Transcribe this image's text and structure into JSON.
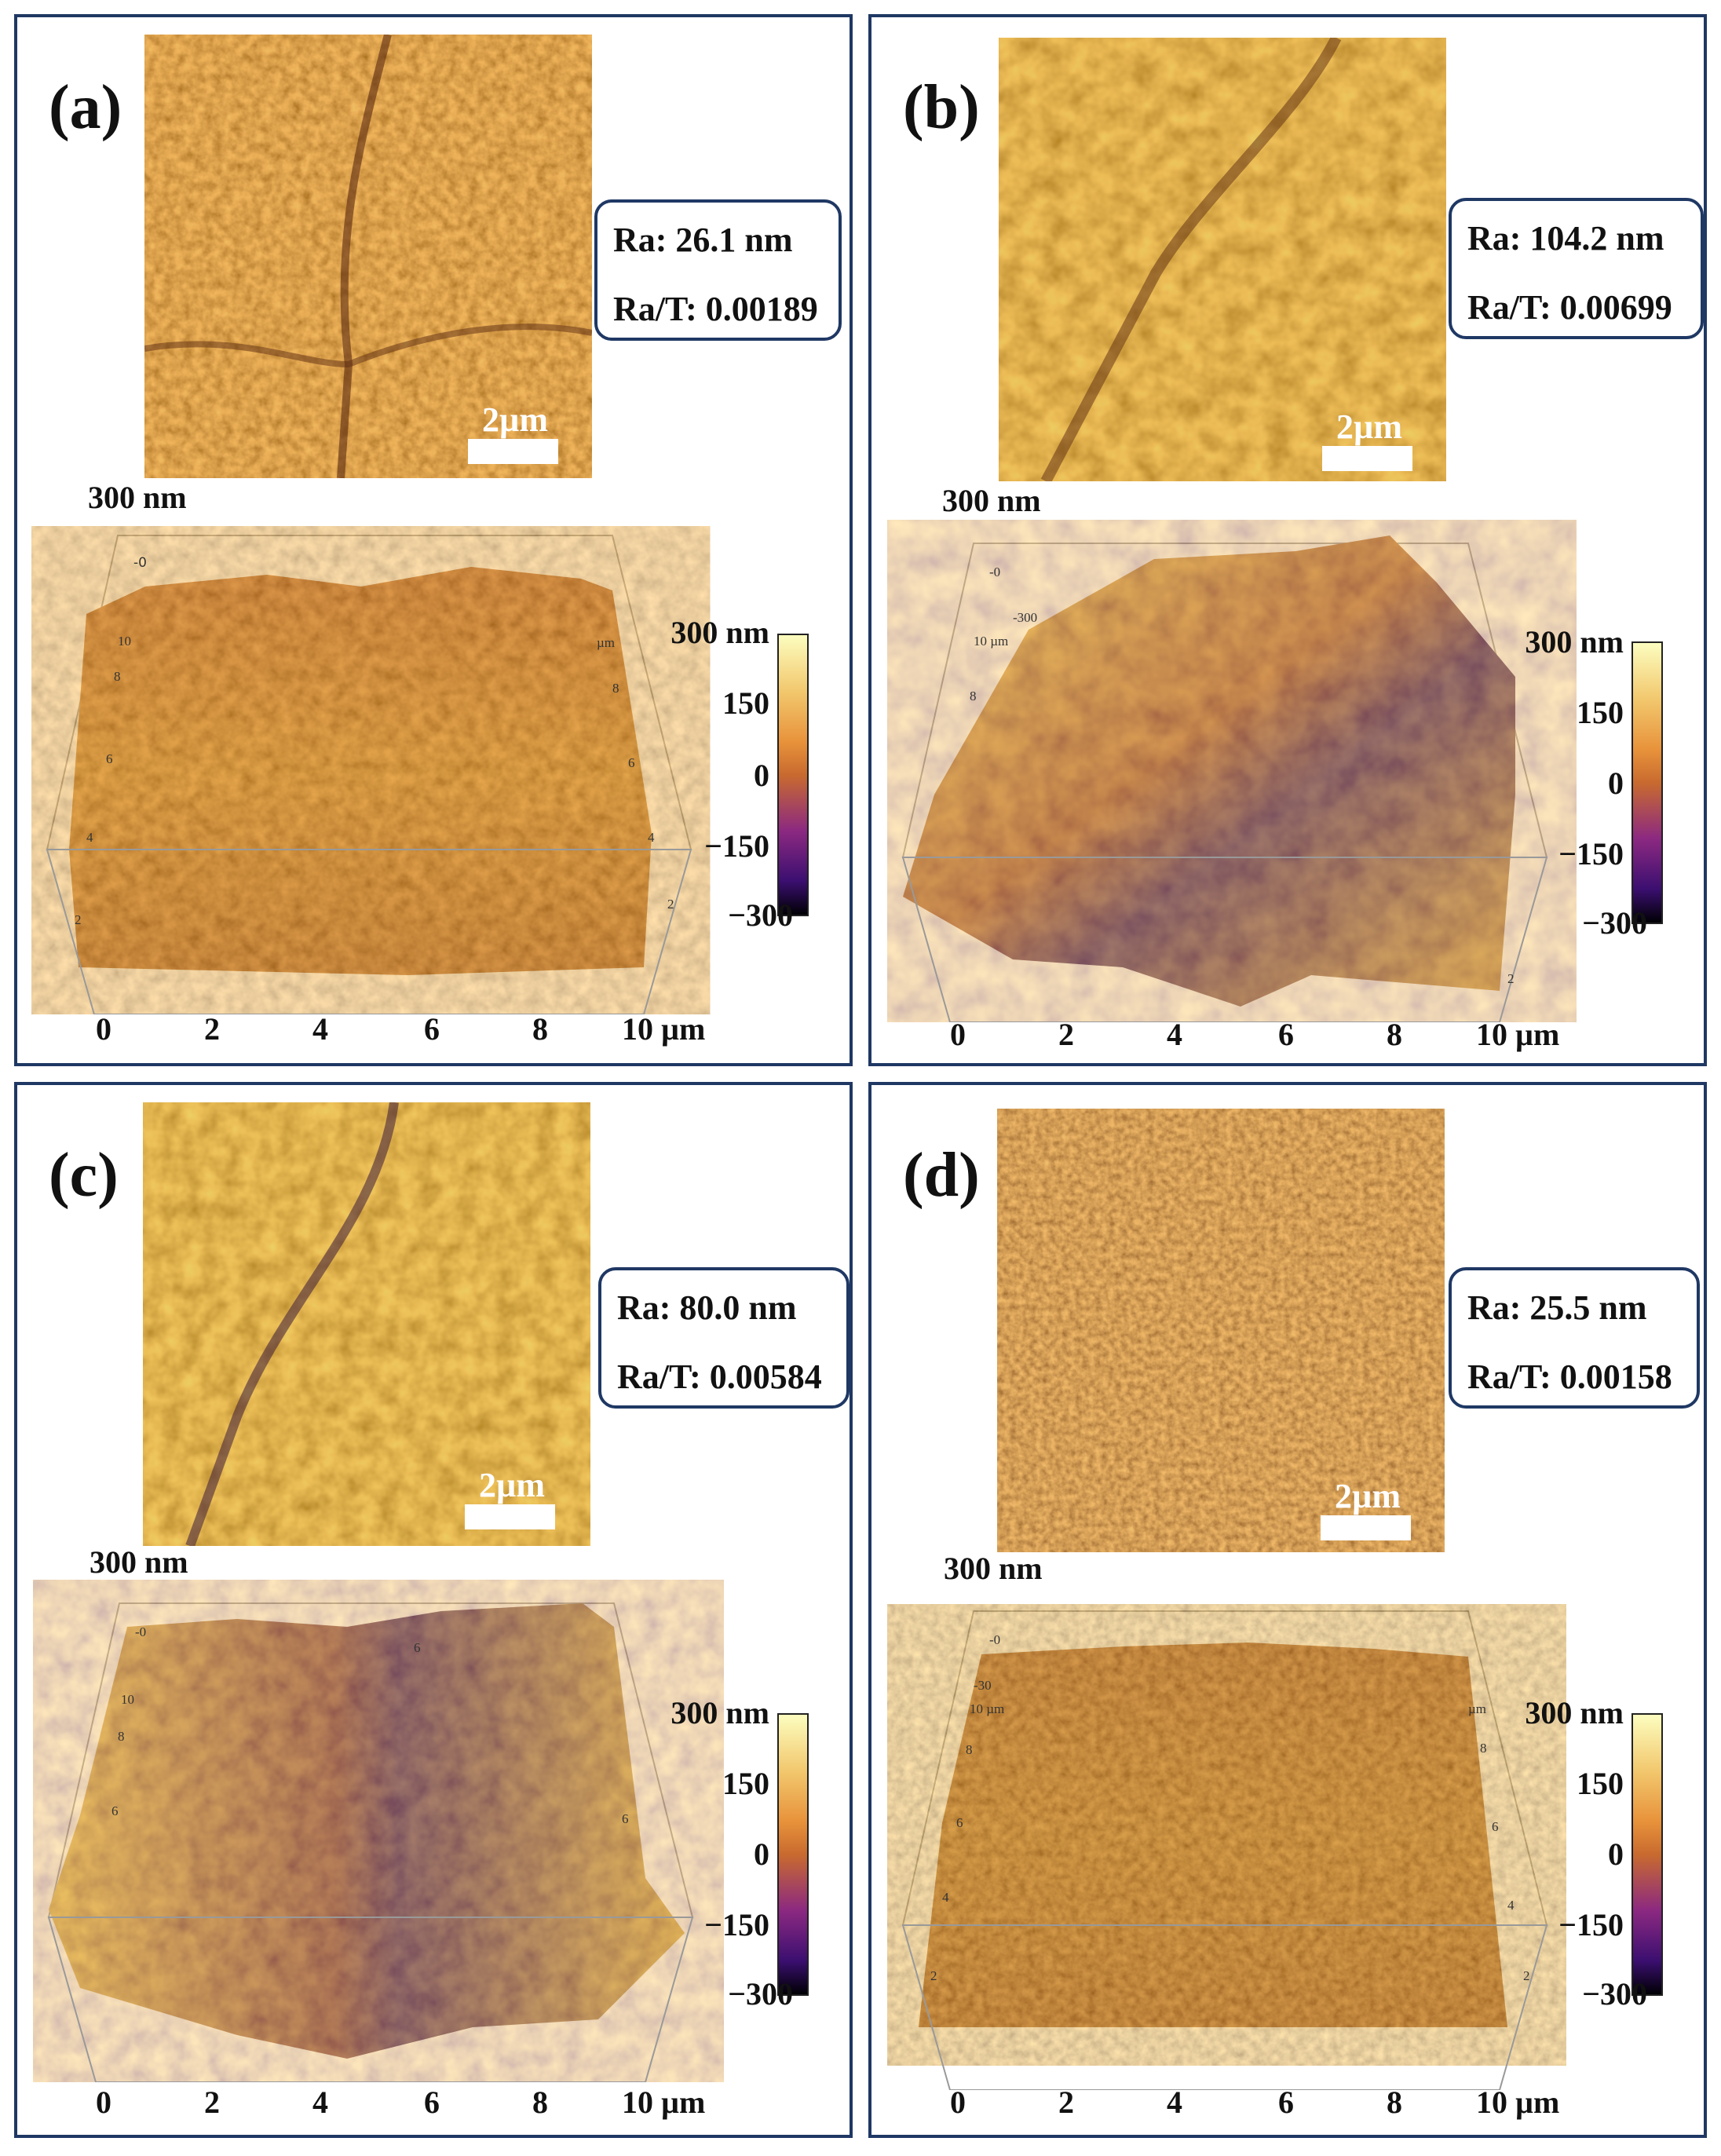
{
  "scale_bar_label": "2µm",
  "z_top_label": "300 nm",
  "colorbar_ticks": [
    "300 nm",
    "150",
    "0",
    "−150",
    "−300"
  ],
  "x_axis_ticks": [
    "0",
    "2",
    "4",
    "6",
    "8",
    "10 µm"
  ],
  "panels": [
    {
      "id": "a",
      "label": "(a)",
      "ra": "Ra: 26.1 nm",
      "ra_t": "Ra/T: 0.00189"
    },
    {
      "id": "b",
      "label": "(b)",
      "ra": "Ra: 104.2 nm",
      "ra_t": "Ra/T: 0.00699"
    },
    {
      "id": "c",
      "label": "(c)",
      "ra": "Ra: 80.0 nm",
      "ra_t": "Ra/T: 0.00584"
    },
    {
      "id": "d",
      "label": "(d)",
      "ra": "Ra: 25.5 nm",
      "ra_t": "Ra/T: 0.00158"
    }
  ],
  "colors": {
    "frame": "#1f3864",
    "inferno_high": "#fcfdbf",
    "inferno_mid": "#c86a2f",
    "inferno_low": "#000004"
  }
}
